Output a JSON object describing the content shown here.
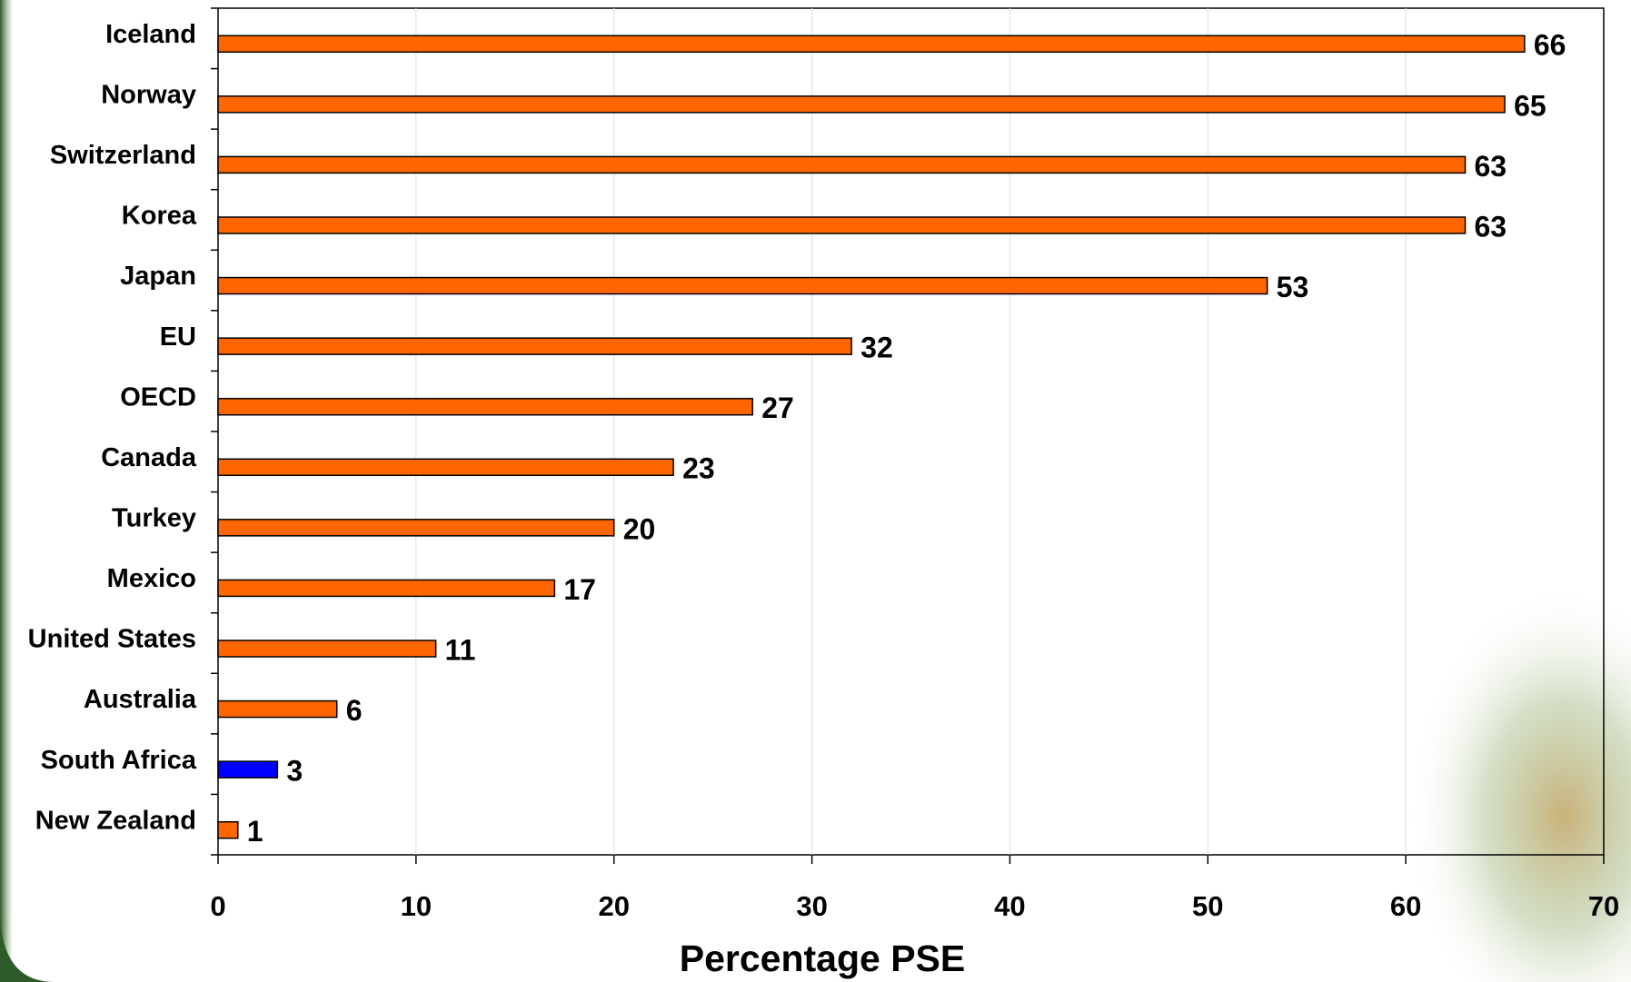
{
  "chart_data": {
    "type": "bar",
    "orientation": "horizontal",
    "categories": [
      "Iceland",
      "Norway",
      "Switzerland",
      "Korea",
      "Japan",
      "EU",
      "OECD",
      "Canada",
      "Turkey",
      "Mexico",
      "United States",
      "Australia",
      "South Africa",
      "New Zealand"
    ],
    "values": [
      66,
      65,
      63,
      63,
      53,
      32,
      27,
      23,
      20,
      17,
      11,
      6,
      3,
      1
    ],
    "colors": [
      "#ff6600",
      "#ff6600",
      "#ff6600",
      "#ff6600",
      "#ff6600",
      "#ff6600",
      "#ff6600",
      "#ff6600",
      "#ff6600",
      "#ff6600",
      "#ff6600",
      "#ff6600",
      "#0000ff",
      "#ff6600"
    ],
    "x_label": "Percentage PSE",
    "xlim": [
      0,
      70
    ],
    "xticks": [
      0,
      10,
      20,
      30,
      40,
      50,
      60,
      70
    ],
    "grid": true
  }
}
